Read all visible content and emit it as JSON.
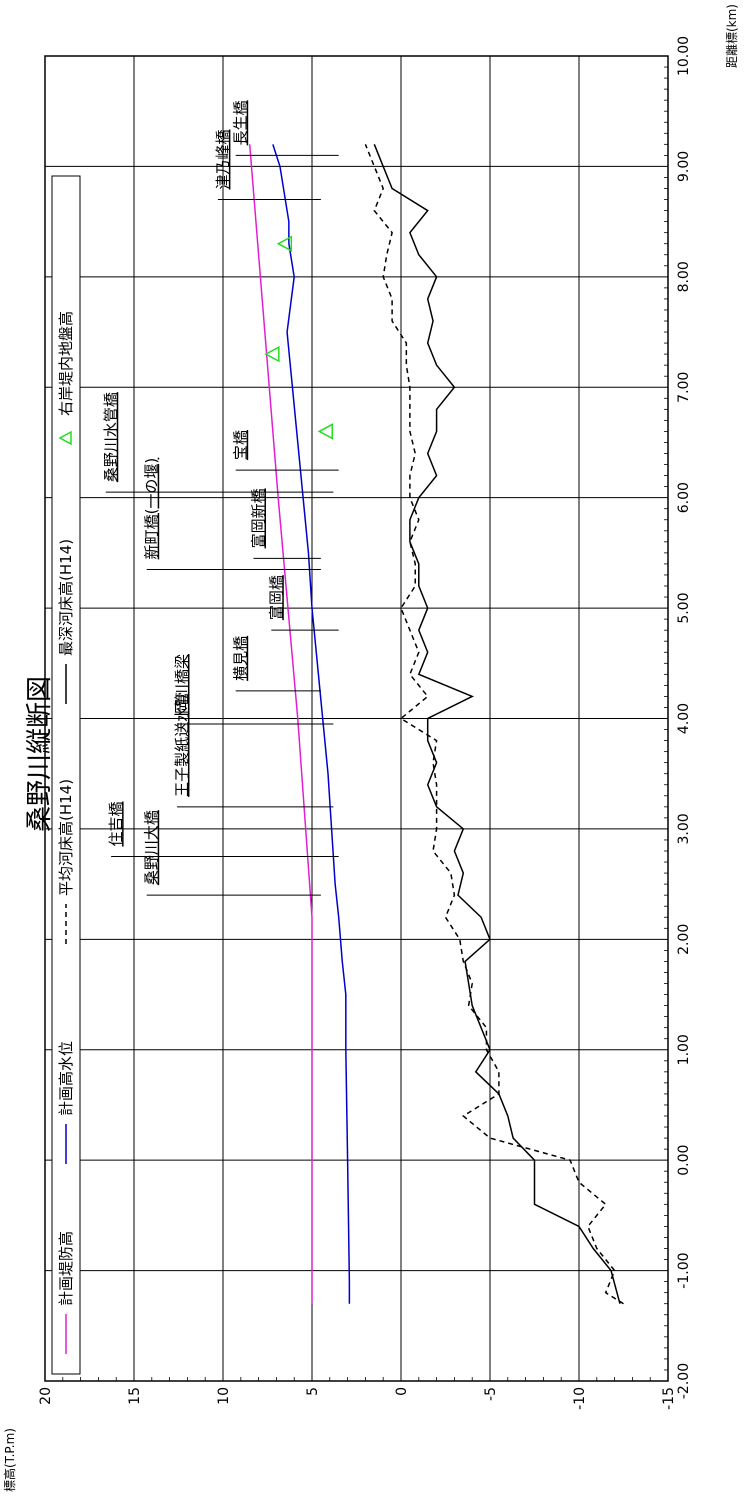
{
  "chart_data": {
    "type": "line",
    "title": "桑野川縦断図",
    "xlabel": "距離標(km)",
    "ylabel": "標高(T.P.m)",
    "xlim": [
      -2.0,
      10.0
    ],
    "ylim": [
      -15,
      20
    ],
    "x_ticks": [
      -2.0,
      -1.0,
      0.0,
      1.0,
      2.0,
      3.0,
      4.0,
      5.0,
      6.0,
      7.0,
      8.0,
      9.0,
      10.0
    ],
    "x_tick_labels": [
      "-2.00",
      "-1.00",
      "0.00",
      "1.00",
      "2.00",
      "3.00",
      "4.00",
      "5.00",
      "6.00",
      "7.00",
      "8.00",
      "9.00",
      "10.00"
    ],
    "y_ticks": [
      -15,
      -10,
      -5,
      0,
      5,
      10,
      15,
      20
    ],
    "y_tick_labels": [
      "-15",
      "-10",
      "-5",
      "0",
      "5",
      "10",
      "15",
      "20"
    ],
    "grid": true,
    "legend_position": "top",
    "series": [
      {
        "name": "計画堤防高",
        "color": "#e020d0",
        "style": "solid",
        "x": [
          -1.3,
          2.2,
          4.0,
          6.0,
          8.0,
          9.2
        ],
        "values": [
          5.0,
          5.0,
          5.8,
          6.9,
          7.9,
          8.5
        ]
      },
      {
        "name": "計画高水位",
        "color": "#0000cc",
        "style": "solid",
        "x": [
          -1.3,
          -1.1,
          0.0,
          1.0,
          1.5,
          1.8,
          2.2,
          2.5,
          3.0,
          3.5,
          4.0,
          4.5,
          5.0,
          5.5,
          6.0,
          6.5,
          7.0,
          7.5,
          8.0,
          8.3,
          8.5,
          9.0,
          9.2
        ],
        "values": [
          2.9,
          2.9,
          3.0,
          3.1,
          3.1,
          3.3,
          3.5,
          3.7,
          3.9,
          4.1,
          4.4,
          4.7,
          5.0,
          5.2,
          5.5,
          5.8,
          6.1,
          6.4,
          6.0,
          6.3,
          6.3,
          6.8,
          7.2
        ]
      },
      {
        "name": "平均河床高(H14)",
        "color": "#000000",
        "style": "dashed",
        "x": [
          -1.3,
          -1.2,
          -1.0,
          -0.8,
          -0.6,
          -0.4,
          -0.2,
          0.0,
          0.2,
          0.4,
          0.6,
          0.8,
          1.0,
          1.2,
          1.4,
          1.6,
          1.8,
          2.0,
          2.2,
          2.4,
          2.6,
          2.8,
          3.0,
          3.2,
          3.4,
          3.6,
          3.8,
          4.0,
          4.2,
          4.4,
          4.6,
          4.8,
          5.0,
          5.2,
          5.4,
          5.6,
          5.8,
          6.0,
          6.2,
          6.4,
          6.6,
          6.8,
          7.0,
          7.2,
          7.4,
          7.6,
          7.8,
          8.0,
          8.2,
          8.4,
          8.6,
          8.8,
          9.0,
          9.2
        ],
        "values": [
          -12.5,
          -11.5,
          -12.0,
          -11.0,
          -10.5,
          -11.5,
          -10.0,
          -9.5,
          -5.0,
          -3.5,
          -5.5,
          -5.5,
          -4.8,
          -4.8,
          -3.8,
          -4.0,
          -3.5,
          -3.3,
          -2.5,
          -3.0,
          -2.8,
          -1.8,
          -2.0,
          -2.0,
          -2.0,
          -1.8,
          -2.0,
          0.0,
          -1.5,
          -0.5,
          -1.0,
          -0.5,
          0.0,
          -0.8,
          -0.8,
          -0.5,
          -1.0,
          -0.5,
          -0.5,
          -0.8,
          -0.5,
          -0.5,
          -0.5,
          -0.3,
          -0.3,
          0.5,
          0.5,
          1.0,
          0.8,
          0.5,
          1.5,
          1.0,
          1.5,
          2.0
        ]
      },
      {
        "name": "最深河床高(H14)",
        "color": "#000000",
        "style": "solid",
        "x": [
          -1.3,
          -1.0,
          -0.8,
          -0.6,
          -0.4,
          0.0,
          0.2,
          0.4,
          0.6,
          0.8,
          1.0,
          1.2,
          1.4,
          1.6,
          1.8,
          2.0,
          2.2,
          2.4,
          2.6,
          2.8,
          3.0,
          3.2,
          3.4,
          3.6,
          3.8,
          4.0,
          4.2,
          4.4,
          4.6,
          4.8,
          5.0,
          5.2,
          5.4,
          5.6,
          5.8,
          6.0,
          6.2,
          6.4,
          6.6,
          6.8,
          7.0,
          7.2,
          7.4,
          7.6,
          7.8,
          8.0,
          8.2,
          8.4,
          8.6,
          8.8,
          9.0,
          9.2
        ],
        "values": [
          -12.3,
          -11.8,
          -10.8,
          -10.0,
          -7.5,
          -7.5,
          -6.3,
          -6.0,
          -5.5,
          -4.2,
          -5.0,
          -4.5,
          -4.0,
          -3.8,
          -3.6,
          -5.0,
          -4.5,
          -3.2,
          -3.5,
          -3.0,
          -3.5,
          -2.0,
          -1.5,
          -2.0,
          -1.5,
          -1.5,
          -4.0,
          -1.0,
          -1.5,
          -1.0,
          -1.5,
          -1.0,
          -1.0,
          -0.5,
          -0.5,
          -1.0,
          -2.0,
          -1.5,
          -2.0,
          -2.0,
          -3.0,
          -2.0,
          -1.5,
          -1.8,
          -1.5,
          -2.0,
          -1.0,
          -0.5,
          -1.5,
          0.5,
          1.0,
          1.5
        ]
      },
      {
        "name": "右岸堤内地盤高",
        "color": "#22dd22",
        "style": "marker-triangle",
        "x": [
          6.6,
          7.3,
          8.3
        ],
        "values": [
          4.2,
          7.2,
          6.5
        ]
      }
    ],
    "bridges": [
      {
        "name": "桑野川大橋",
        "x": 2.4,
        "length": 0.9,
        "y": 4.5
      },
      {
        "name": "住吉橋",
        "x": 2.75,
        "length": 1.2,
        "y": 3.5
      },
      {
        "name": "王子製紙送水管",
        "x": 3.2,
        "length": 0.8,
        "y": 3.8
      },
      {
        "name": "岡川橋梁",
        "x": 3.95,
        "length": 0.8,
        "y": 3.8
      },
      {
        "name": "横見橋",
        "x": 4.25,
        "length": 0.4,
        "y": 4.5
      },
      {
        "name": "富岡橋",
        "x": 4.8,
        "length": 0.3,
        "y": 3.5
      },
      {
        "name": "新町橋(一の堰)",
        "x": 5.35,
        "length": 0.9,
        "y": 4.5
      },
      {
        "name": "富岡新橋",
        "x": 5.45,
        "length": 0.3,
        "y": 4.5
      },
      {
        "name": "宝橋",
        "x": 6.25,
        "length": 0.5,
        "y": 3.5
      },
      {
        "name": "桑野川水管橋",
        "x": 6.05,
        "length": 1.2,
        "y": 3.8
      },
      {
        "name": "津乃峰橋",
        "x": 8.7,
        "length": 0.5,
        "y": 4.5
      },
      {
        "name": "長生橋",
        "x": 9.1,
        "length": 0.5,
        "y": 3.5
      }
    ]
  }
}
